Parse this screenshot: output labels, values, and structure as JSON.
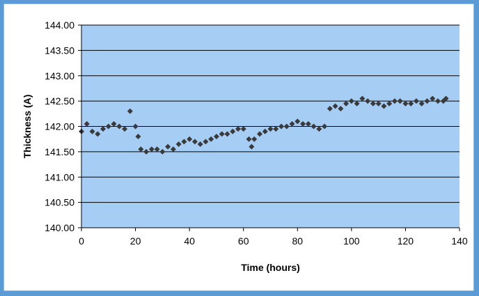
{
  "chart_data": {
    "type": "scatter",
    "title": "",
    "xlabel": "Time (hours)",
    "ylabel": "Thickness (A)",
    "xlim": [
      0,
      140
    ],
    "ylim": [
      140.0,
      144.0
    ],
    "x_ticks": [
      0,
      20,
      40,
      60,
      80,
      100,
      120,
      140
    ],
    "y_ticks": [
      "140.00",
      "140.50",
      "141.00",
      "141.50",
      "142.00",
      "142.50",
      "143.00",
      "143.50",
      "144.00"
    ],
    "grid": "horizontal",
    "legend": "none",
    "colors": {
      "plot_background": "#a6cdf4",
      "marker": "#3a3a3a",
      "gridline": "#000000",
      "frame": "#5b9bd5"
    },
    "series": [
      {
        "marker": "diamond",
        "x": [
          0,
          2,
          4,
          6,
          8,
          10,
          12,
          14,
          16,
          18,
          20,
          21,
          22,
          24,
          26,
          28,
          30,
          32,
          34,
          36,
          38,
          40,
          42,
          44,
          46,
          48,
          50,
          52,
          54,
          56,
          58,
          60,
          62,
          63,
          64,
          66,
          68,
          70,
          72,
          74,
          76,
          78,
          80,
          82,
          84,
          86,
          88,
          90,
          92,
          94,
          96,
          98,
          100,
          102,
          104,
          106,
          108,
          110,
          112,
          114,
          116,
          118,
          120,
          122,
          124,
          126,
          128,
          130,
          132,
          134,
          135
        ],
        "y": [
          141.9,
          142.05,
          141.9,
          141.85,
          141.95,
          142.0,
          142.05,
          142.0,
          141.95,
          142.3,
          142.0,
          141.8,
          141.55,
          141.5,
          141.55,
          141.55,
          141.5,
          141.6,
          141.55,
          141.65,
          141.7,
          141.75,
          141.7,
          141.65,
          141.7,
          141.75,
          141.8,
          141.85,
          141.85,
          141.9,
          141.95,
          141.95,
          141.75,
          141.6,
          141.75,
          141.85,
          141.9,
          141.95,
          141.95,
          142.0,
          142.0,
          142.05,
          142.1,
          142.05,
          142.05,
          142.0,
          141.95,
          142.0,
          142.35,
          142.4,
          142.35,
          142.45,
          142.5,
          142.45,
          142.55,
          142.5,
          142.45,
          142.45,
          142.4,
          142.45,
          142.5,
          142.5,
          142.45,
          142.45,
          142.5,
          142.45,
          142.5,
          142.55,
          142.5,
          142.5,
          142.55
        ]
      }
    ]
  }
}
